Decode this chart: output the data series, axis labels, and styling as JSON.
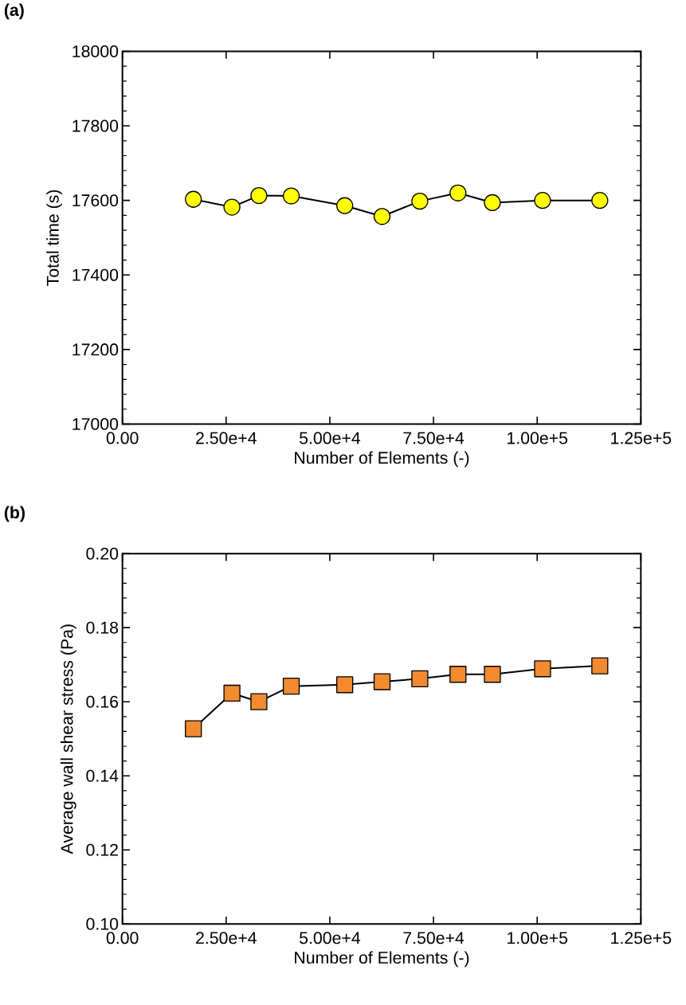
{
  "chart_data": [
    {
      "type": "line",
      "title": "(a)",
      "xlabel": "Number of Elements (-)",
      "ylabel": "Total time (s)",
      "x": [
        17100,
        26400,
        32900,
        40700,
        53600,
        62600,
        71700,
        80900,
        89200,
        101300,
        115100
      ],
      "series": [
        {
          "color": "#ffff00",
          "values": [
            17603,
            17582,
            17613,
            17612,
            17586,
            17557,
            17598,
            17620,
            17594,
            17600,
            17600
          ]
        }
      ],
      "xlim": [
        0,
        125000
      ],
      "ylim": [
        17000,
        18000
      ],
      "xticks": [
        {
          "value": 0,
          "label": "0.00"
        },
        {
          "value": 25000,
          "label": "2.50e+4"
        },
        {
          "value": 50000,
          "label": "5.00e+4"
        },
        {
          "value": 75000,
          "label": "7.50e+4"
        },
        {
          "value": 100000,
          "label": "1.00e+5"
        },
        {
          "value": 125000,
          "label": "1.25e+5"
        }
      ],
      "yticks": [
        17000,
        17200,
        17400,
        17600,
        17800,
        18000
      ],
      "marker": "circle",
      "line_style": "solid"
    },
    {
      "type": "line",
      "title": "(b)",
      "xlabel": "Number of Elements (-)",
      "ylabel": "Average wall shear stress (Pa)",
      "x": [
        17100,
        26400,
        32900,
        40700,
        53600,
        62600,
        71700,
        80900,
        89200,
        101300,
        115100
      ],
      "series": [
        {
          "color": "#f28a30",
          "values": [
            0.1527,
            0.1623,
            0.16,
            0.1642,
            0.1646,
            0.1654,
            0.1662,
            0.1674,
            0.1674,
            0.1689,
            0.1697
          ]
        }
      ],
      "xlim": [
        0,
        125000
      ],
      "ylim": [
        0.1,
        0.2
      ],
      "xticks": [
        {
          "value": 0,
          "label": "0.00"
        },
        {
          "value": 25000,
          "label": "2.50e+4"
        },
        {
          "value": 50000,
          "label": "5.00e+4"
        },
        {
          "value": 75000,
          "label": "7.50e+4"
        },
        {
          "value": 100000,
          "label": "1.00e+5"
        },
        {
          "value": 125000,
          "label": "1.25e+5"
        }
      ],
      "yticks": [
        {
          "value": 0.1,
          "label": "0.10"
        },
        {
          "value": 0.12,
          "label": "0.12"
        },
        {
          "value": 0.14,
          "label": "0.14"
        },
        {
          "value": 0.16,
          "label": "0.16"
        },
        {
          "value": 0.18,
          "label": "0.18"
        },
        {
          "value": 0.2,
          "label": "0.20"
        }
      ],
      "marker": "square",
      "line_style": "solid"
    }
  ]
}
